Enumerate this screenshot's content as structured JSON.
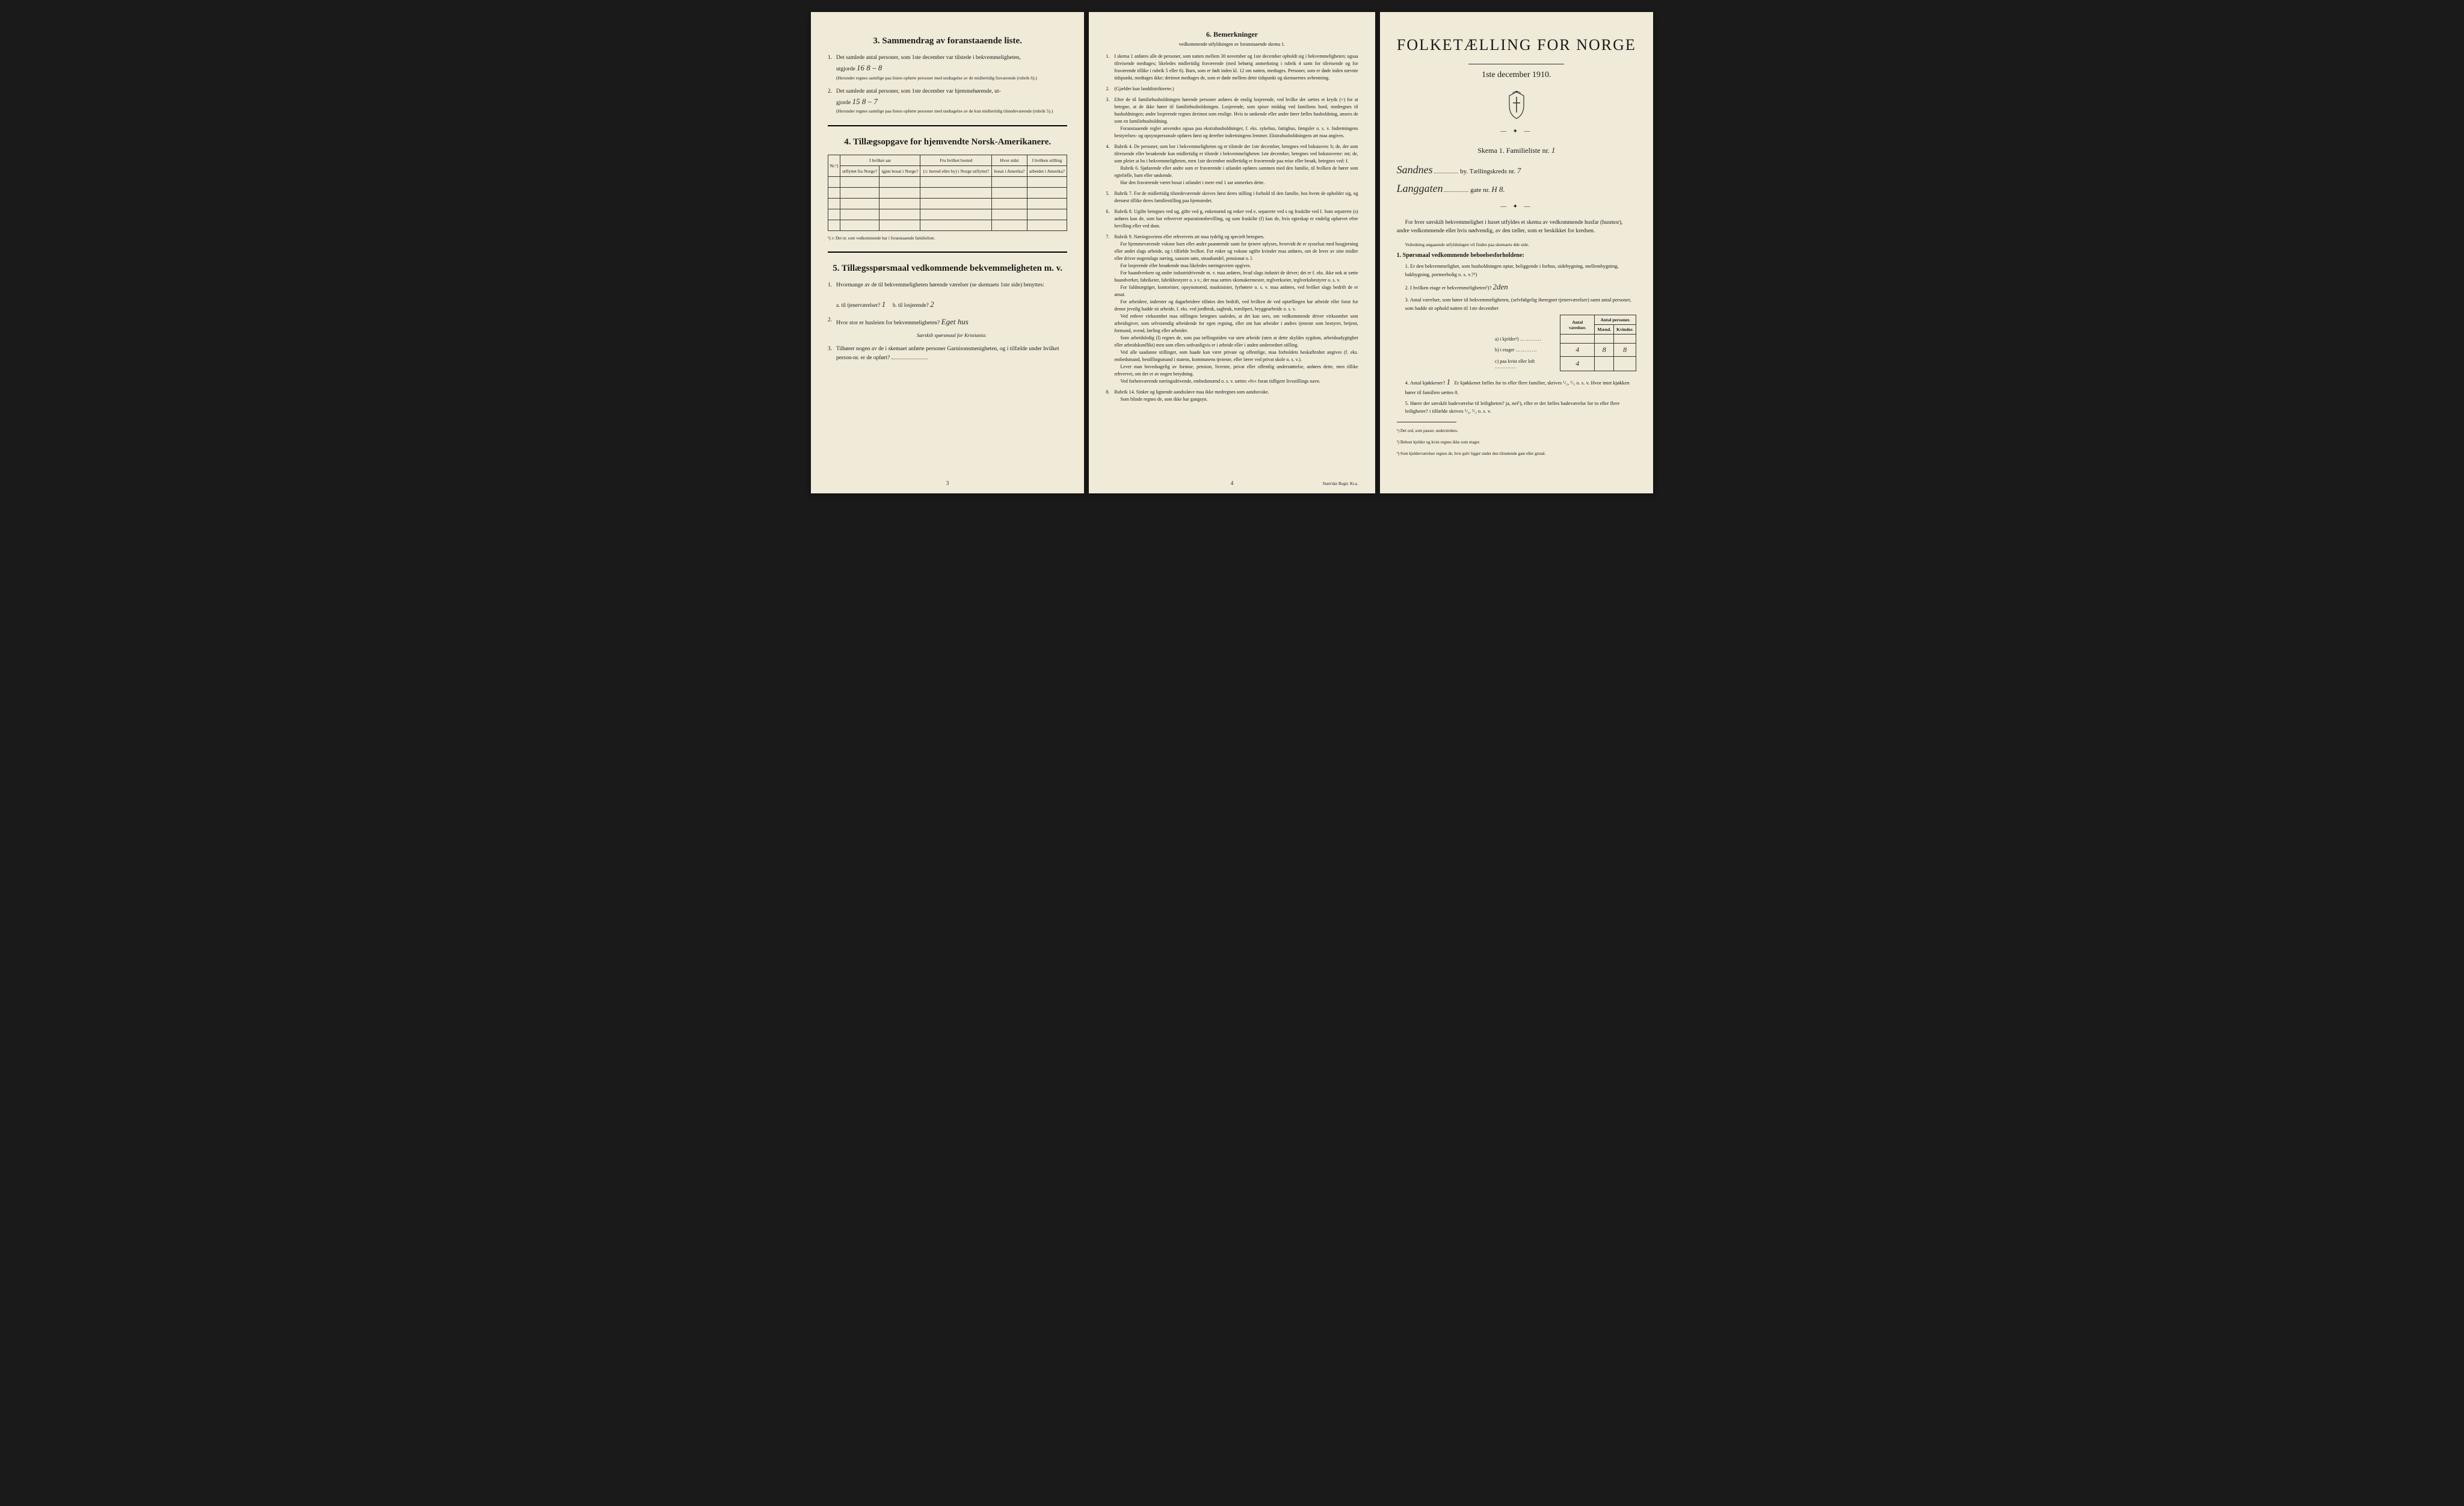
{
  "colors": {
    "page_bg": "#f0ead8",
    "body_bg": "#1a1a1a",
    "text": "#1a1a1a",
    "handwriting": "#2a2a2a"
  },
  "typography": {
    "base_font": "Georgia, Times New Roman, serif",
    "handwriting_font": "Brush Script MT, cursive",
    "title_font": "Copperplate, Trajan Pro, serif"
  },
  "left": {
    "section3": {
      "title": "3.   Sammendrag av foranstaaende liste.",
      "item1_pre": "Det samlede antal personer, som 1ste december var tilstede i bekvemmeligheten,",
      "item1_label": "utgjorde",
      "item1_value": "16    8 – 8",
      "item1_note": "(Herunder regnes samtlige paa listen opførte personer med undtagelse av de midlertidig fraværende (rubrik 6).)",
      "item2_pre": "Det samlede antal personer, som 1ste december var hjemmehørende, ut-",
      "item2_label": "gjorde",
      "item2_value": "15    8 – 7",
      "item2_note": "(Herunder regnes samtlige paa listen opførte personer med undtagelse av de kun midlertidig tilstedeværende (rubrik 5).)"
    },
    "section4": {
      "title": "4.   Tillægsopgave for hjemvendte Norsk-Amerikanere.",
      "headers": {
        "nr": "Nr.¹)",
        "col1a": "I hvilket aar",
        "col1b": "utflyttet fra Norge?",
        "col1c": "igjen bosat i Norge?",
        "col2a": "Fra hvilket bosted",
        "col2b": "(ɔ: herred eller by) i Norge utflyttet?",
        "col3a": "Hvor sidst",
        "col3b": "bosat i Amerika?",
        "col4a": "I hvilken stilling",
        "col4b": "arbeidet i Amerika?"
      },
      "footnote": "¹) ɔ: Det nr. som vedkommende har i foranstaaende familieliste."
    },
    "section5": {
      "title": "5.   Tillægsspørsmaal vedkommende bekvemmeligheten m. v.",
      "q1": "Hvormange av de til bekvemmeligheten hørende værelser (se skemaets 1ste side) benyttes:",
      "q1a_label": "a.  til tjenerværelser?",
      "q1a_value": "1",
      "q1b_label": "b.  til losjerende?",
      "q1b_value": "2",
      "q2": "Hvor stor er husleien for bekvemmeligheten?",
      "q2_value": "Eget hus",
      "q2_note": "Særskilt spørsmaal for Kristiania:",
      "q3": "Tilhører nogen av de i skemaet anførte personer Garnisonsmenigheten, og i tilfælde under hvilket person-nr. er de opført?"
    },
    "page_num": "3"
  },
  "middle": {
    "section6": {
      "title": "6.   Bemerkninger",
      "subtitle": "vedkommende utfyldningen av foranstaaende skema 1.",
      "items": [
        "I skema 1 anføres alle de personer, som natten mellem 30 november og 1ste december opholdt sig i bekvemmeligheten; ogsaa tilreisende medtages; likeledes midlertidig fraværende (med behørig anmerkning i rubrik 4 samt for tilreisende og for fraværende tillike i rubrik 5 eller 6). Barn, som er født inden kl. 12 om natten, medtages. Personer, som er døde inden nævnte tidspunkt, medtages ikke; derimot medtages de, som er døde mellem dette tidspunkt og skemaernes avhentning.",
        "(Gjælder kun landdistrikterne.)",
        "Efter de til familiehusholdningen hørende personer anføres de enslig losjerende, ved hvilke der sættes et kryds (×) for at betegne, at de ikke hører til familiehusholdningen. Losjerende, som spiser middag ved familiens bord, medregnes til husholdningen; andre losjerende regnes derimot som enslige. Hvis to søskende eller andre fører fælles husholdning, ansees de som en familiehusholdning.\n   Foranstaaende regler anvendes ogsaa paa ekstrahusholdninger, f. eks. sykehus, fattighus, fængsler o. s. v. Indretningens bestyrelses- og opsynspersonale opføres først og derefter indretningens lemmer. Ekstrahusholdningens art maa angives.",
        "Rubrik 4. De personer, som bor i bekvemmeligheten og er tilstede der 1ste december, betegnes ved bokstaven: b; de, der som tilreisende eller besøkende kun midlertidig er tilstede i bekvemmeligheten 1ste december, betegnes ved bokstaverne: mt; de, som pleier at bo i bekvemmeligheten, men 1ste december midlertidig er fraværende paa reise eller besøk, betegnes ved: f.\n   Rubrik 6. Sjøfarende eller andre som er fraværende i utlandet opføres sammen med den familie, til hvilken de hører som egtefælle, barn eller søskende.\n   Har den fraværende været bosat i utlandet i mere end 1 aar anmerkes dette.",
        "Rubrik 7. For de midlertidig tilstedeværende skrives først deres stilling i forhold til den familie, hos hvem de opholder sig, og dernæst tillike deres familiestilling paa hjemstedet.",
        "Rubrik 8. Ugifte betegnes ved ug, gifte ved g, enkemænd og enker ved e, separerte ved s og fraskilte ved f. Som separerte (s) anføres kun de, som har erhvervet separationsbevilling, og som fraskilte (f) kun de, hvis egteskap er endelig ophævet efter bevilling eller ved dom.",
        "Rubrik 9. Næringsveiens eller erhvervets art maa tydelig og specielt betegnes.\n   For hjemmeværende voksne barn eller andre paarørende samt for tjenere oplyses, hvorvidt de er sysselsat med husgjerning eller andet slags arbeide, og i tilfælde hvilket. For enker og voksne ugifte kvinder maa anføres, om de lever av sine midler eller driver nogenslags næring, saasom søm, smaahandel, pensionat o. l.\n   For losjerende eller besøkende maa likeledes næringsveien opgives.\n   For haandverkere og andre industridrivende m. v. maa anføres, hvad slags industri de driver; det er f. eks. ikke nok at sætte haandverker, fabrikeier, fabrikbestyrer o. s v.; der maa sættes skomakermester, teglverkseier, teglverksbestyrer o. s. v.\n   For fuldmægtiger, kontorister, opsynsmænd, maskinister, fyrbøtere o. s. v. maa anføres, ved hvilket slags bedrift de er ansat.\n   For arbeidere, inderster og dagarbeidere tilføies den bedrift, ved hvilken de ved optællingen har arbeide eller forut for denne jevnlig hadde sit arbeide, f. eks. ved jordbruk, sagbruk, træsliperi, bryggearbeide o. s. v.\n   Ved enhver virksomhet maa stillingen betegnes saaledes, at det kan sees, om vedkommende driver virksomhet som arbeidsgiver, som selvstændig arbeidende for egen regning, eller om han arbeider i andres tjeneste som bestyrer, betjent, formand, svend, lærling eller arbeider.\n   Som arbeidsledig (l) regnes de, som paa tællingstiden var uten arbeide (uten at dette skyldes sygdom, arbeidsudygtighet eller arbeidskonflikt) men som ellers sedvanligvis er i arbeide eller i anden underordnet stilling.\n   Ved alle saadanne stillinger, som baade kan være private og offentlige, maa forholdets beskaffenhet angives (f. eks. embedsmand, bestillingsmand i statens, kommunens tjeneste, eller lærer ved privat skole o. s. v.).\n   Lever man hovedsagelig av formue, pension, livrente, privat eller offentlig understøttelse, anføres dette, men tillike erhvervet, om der er av nogen betydning.\n   Ved forhenværende næringsdrivende, embedsmænd o. s. v. sættes «fv» foran tidligere livsstillings navn.",
        "Rubrik 14. Sinker og lignende aandssløve maa ikke medregnes som aandssvake.\n   Som blinde regnes de, som ikke har gangsyn."
      ]
    },
    "page_num": "4",
    "printer": "Stæn'ske Bogtr. Kr.a."
  },
  "right": {
    "main_title": "FOLKETÆLLING FOR NORGE",
    "date": "1ste december 1910.",
    "skema_label": "Skema 1.   Familieliste nr.",
    "skema_nr": "1",
    "by_value": "Sandnes",
    "by_label": "by.   Tællingskreds nr.",
    "kreds_nr": "7",
    "gate_value": "Langgaten",
    "gate_label": "gate nr.",
    "gate_nr": "H 8.",
    "intro": "For hver særskilt bekvemmelighet i huset utfyldes et skema av vedkommende husfar (husmor), andre vedkommende eller hvis nødvendig, av den tæller, som er beskikket for kredsen.",
    "intro_note": "Veiledning angaaende utfyldningen vil findes paa skemaets 4de side.",
    "q1_heading": "1. Spørsmaal vedkommende beboelsesforholdene:",
    "sub_questions": [
      "Er den bekvemmelighet, som husholdningen optar, beliggende i forhus, sidebygning, mellembygning, bakbygning, portnerbolig o. s. v.?¹)",
      "I hvilken etage er bekvemmeligheten²)?",
      "Antal værelser, som hører til bekvemmeligheten, (selvfølgelig iberegnet tjenerværelser) samt antal personer, som hadde sit ophold natten til 1ste december"
    ],
    "sub2_value": "2den",
    "table": {
      "headers": [
        "",
        "Antal værelser.",
        "Antal personer."
      ],
      "sub_headers": [
        "",
        "",
        "Mænd.",
        "Kvinder."
      ],
      "rows": [
        {
          "label": "a) i kjelder³)",
          "vaer": "",
          "m": "",
          "k": ""
        },
        {
          "label": "b) i etager",
          "vaer": "4",
          "m": "8",
          "k": "8"
        },
        {
          "label": "c) paa kvist eller loft",
          "vaer": "4",
          "m": "",
          "k": ""
        }
      ]
    },
    "q4": "Antal kjøkkener?",
    "q4_value": "1",
    "q4_rest": "Er kjøkkenet fælles for to eller flere familier, skrives ¹/₂, ¹/₃ o. s. v. Hvor intet kjøkken hører til familien sættes 0.",
    "q5": "Hører der særskilt badeværelse til leiligheten?  ja, nei¹), eller er der fælles badeværelse for to eller flere leiligheter? i tilfælde skrives ¹/₂, ¹/₃ o. s. v.",
    "footnotes": [
      "¹) Det ord, som passer, understrekes.",
      "²) Beboet kjelder og kvist regnes ikke som etager.",
      "³) Som kjelderværelser regnes de, hvis gulv ligger under den tilstøtende gate eller grund."
    ]
  }
}
